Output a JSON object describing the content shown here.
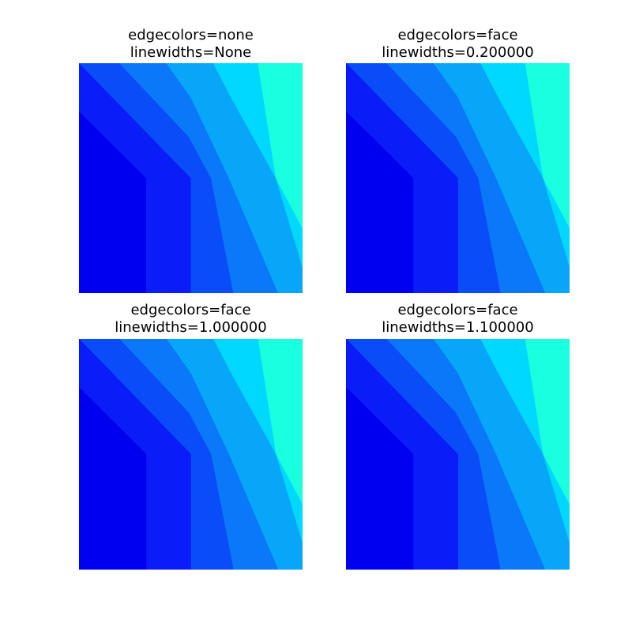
{
  "chart_data": [
    {
      "type": "contour",
      "title": [
        "edgecolors=none",
        "linewidths=None"
      ],
      "xlabel": "",
      "ylabel": "",
      "axes": "off",
      "grid": false,
      "levels": 7,
      "colors": [
        "#0000f0",
        "#0a1cf8",
        "#0a4cf8",
        "#0a78f8",
        "#08a6f8",
        "#00d8ff",
        "#1affdd"
      ]
    },
    {
      "type": "contour",
      "title": [
        "edgecolors=face",
        "linewidths=0.200000"
      ],
      "xlabel": "",
      "ylabel": "",
      "axes": "off",
      "grid": false,
      "levels": 7,
      "colors": [
        "#0000f0",
        "#0a1cf8",
        "#0a4cf8",
        "#0a78f8",
        "#08a6f8",
        "#00d8ff",
        "#1affdd"
      ]
    },
    {
      "type": "contour",
      "title": [
        "edgecolors=face",
        "linewidths=1.000000"
      ],
      "xlabel": "",
      "ylabel": "",
      "axes": "off",
      "grid": false,
      "levels": 7,
      "colors": [
        "#0000f0",
        "#0a1cf8",
        "#0a4cf8",
        "#0a78f8",
        "#08a6f8",
        "#00d8ff",
        "#1affdd"
      ]
    },
    {
      "type": "contour",
      "title": [
        "edgecolors=face",
        "linewidths=1.100000"
      ],
      "xlabel": "",
      "ylabel": "",
      "axes": "off",
      "grid": false,
      "levels": 7,
      "colors": [
        "#0000f0",
        "#0a1cf8",
        "#0a4cf8",
        "#0a78f8",
        "#08a6f8",
        "#00d8ff",
        "#1affdd"
      ]
    }
  ]
}
